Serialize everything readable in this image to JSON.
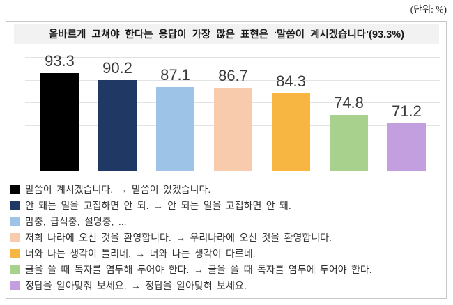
{
  "page": {
    "unit_label": "(단위: %)"
  },
  "chart_data": {
    "type": "bar",
    "title": "올바르게 고쳐야 한다는 응답이 가장 많은 표현은 ‘말씀이 계시겠습니다’(93.3%)",
    "unit": "%",
    "categories": [
      "말씀이 계시겠습니다. → 말씀이 있겠습니다.",
      "안 돼는 일을 고집하면 안 되. → 안 되는 일을 고집하면 안 돼.",
      "맘충, 급식충, 설명충, ...",
      "저희 나라에 오신 것을 환영합니다. → 우리나라에 오신 것을 환영합니다.",
      "너와 나는 생각이 틀리네. → 너와 나는 생각이 다르네.",
      "글을 쓸 때 독자를 염두해 두어야 한다. → 글을 쓸 때 독자를 염두에 두어야 한다.",
      "정답을 알아맞춰 보세요. → 정답을 알아맞혀 보세요."
    ],
    "values": [
      93.3,
      90.2,
      87.1,
      86.7,
      84.3,
      74.8,
      71.2
    ],
    "colors": [
      "#000000",
      "#1f3864",
      "#9dc3e6",
      "#f8cbad",
      "#f7b542",
      "#a9d18e",
      "#c39fdf"
    ],
    "ylim": [
      50,
      100
    ],
    "gridline_values": [
      50,
      60,
      70,
      80,
      90,
      100
    ],
    "grid": true,
    "value_labels_shown": true,
    "legend_position": "bottom",
    "xlabel": "",
    "ylabel": ""
  }
}
